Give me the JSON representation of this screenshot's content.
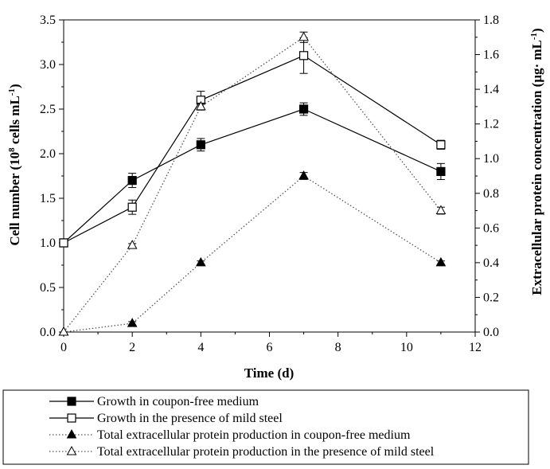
{
  "chart_data": {
    "type": "line",
    "xlabel": "Time (d)",
    "ylabel_left": {
      "main": "Cell number (10",
      "sup": "8",
      "tail": " cells mL",
      "sup2": "-1",
      "end": ")"
    },
    "ylabel_right": {
      "main": "Extracellular protein concentration (μg· mL",
      "sup": "-1",
      "end": ")"
    },
    "xlim": [
      0,
      12
    ],
    "ylim_left": [
      0.0,
      3.5
    ],
    "ylim_right": [
      0.0,
      1.8
    ],
    "x_ticks": [
      "0",
      "2",
      "4",
      "6",
      "8",
      "10",
      "12"
    ],
    "y_left_ticks": [
      "0.0",
      "0.5",
      "1.0",
      "1.5",
      "2.0",
      "2.5",
      "3.0",
      "3.5"
    ],
    "y_right_ticks": [
      "0.0",
      "0.2",
      "0.4",
      "0.6",
      "0.8",
      "1.0",
      "1.2",
      "1.4",
      "1.6",
      "1.8"
    ],
    "grid": false,
    "legend_placement": "bottom",
    "series": [
      {
        "name": "Growth in coupon-free medium",
        "axis": "left",
        "line": "solid",
        "marker": "square-filled",
        "x": [
          0,
          2,
          4,
          7,
          11
        ],
        "y": [
          1.0,
          1.7,
          2.1,
          2.5,
          1.8
        ],
        "err": [
          0.0,
          0.08,
          0.07,
          0.07,
          0.09
        ]
      },
      {
        "name": "Growth in the presence of mild steel",
        "axis": "left",
        "line": "solid",
        "marker": "square-open",
        "x": [
          0,
          2,
          4,
          7,
          11
        ],
        "y": [
          1.0,
          1.4,
          2.6,
          3.1,
          2.1
        ],
        "err": [
          0.0,
          0.08,
          0.1,
          0.2,
          0.05
        ]
      },
      {
        "name": "Total extracellular protein production in coupon-free medium",
        "axis": "right",
        "line": "dotted",
        "marker": "triangle-filled",
        "x": [
          0,
          2,
          4,
          7,
          11
        ],
        "y": [
          0.0,
          0.05,
          0.4,
          0.9,
          0.4
        ],
        "err": [
          0.0,
          0.01,
          0.01,
          0.02,
          0.01
        ]
      },
      {
        "name": "Total extracellular protein production in the presence of mild steel",
        "axis": "right",
        "line": "dotted",
        "marker": "triangle-open",
        "x": [
          0,
          2,
          4,
          7,
          11
        ],
        "y": [
          0.0,
          0.5,
          1.3,
          1.7,
          0.7
        ],
        "err": [
          0.0,
          0.01,
          0.02,
          0.03,
          0.02
        ]
      }
    ]
  }
}
